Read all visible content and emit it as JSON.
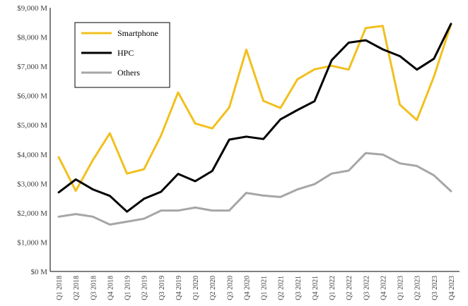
{
  "chart_data": {
    "type": "line",
    "categories": [
      "Q1 2018",
      "Q2 2018",
      "Q3 2018",
      "Q4 2018",
      "Q1 2019",
      "Q2 2019",
      "Q3 2019",
      "Q4 2019",
      "Q1 2020",
      "Q2 2020",
      "Q3 2020",
      "Q4 2020",
      "Q1 2021",
      "Q2 2021",
      "Q3 2021",
      "Q4 2021",
      "Q1 2022",
      "Q2 2022",
      "Q3 2022",
      "Q4 2022",
      "Q1 2023",
      "Q2 2023",
      "Q3 2023",
      "Q4 2023"
    ],
    "y_ticks": [
      "$0 M",
      "$1,000 M",
      "$2,000 M",
      "$3,000 M",
      "$4,000 M",
      "$5,000 M",
      "$6,000 M",
      "$7,000 M",
      "$8,000 M",
      "$9,000 M"
    ],
    "ylim": [
      0,
      9000
    ],
    "grid": false,
    "legend_position": "top-left inset",
    "series": [
      {
        "name": "Smartphone",
        "color": "#F2C01E",
        "values": [
          3900,
          2750,
          3800,
          4720,
          3340,
          3490,
          4640,
          6110,
          5050,
          4880,
          5600,
          7570,
          5820,
          5580,
          6560,
          6900,
          7020,
          6890,
          8310,
          8380,
          5690,
          5170,
          6650,
          8440
        ]
      },
      {
        "name": "HPC",
        "color": "#000000",
        "values": [
          2700,
          3140,
          2800,
          2580,
          2040,
          2480,
          2720,
          3330,
          3080,
          3430,
          4500,
          4600,
          4520,
          5190,
          5510,
          5810,
          7210,
          7810,
          7890,
          7580,
          7350,
          6890,
          7260,
          8450
        ]
      },
      {
        "name": "Others",
        "color": "#A6A6A6",
        "values": [
          1870,
          1960,
          1870,
          1600,
          1700,
          1800,
          2080,
          2080,
          2180,
          2080,
          2080,
          2680,
          2590,
          2540,
          2800,
          2980,
          3340,
          3440,
          4040,
          3990,
          3690,
          3600,
          3280,
          2740
        ]
      }
    ]
  }
}
